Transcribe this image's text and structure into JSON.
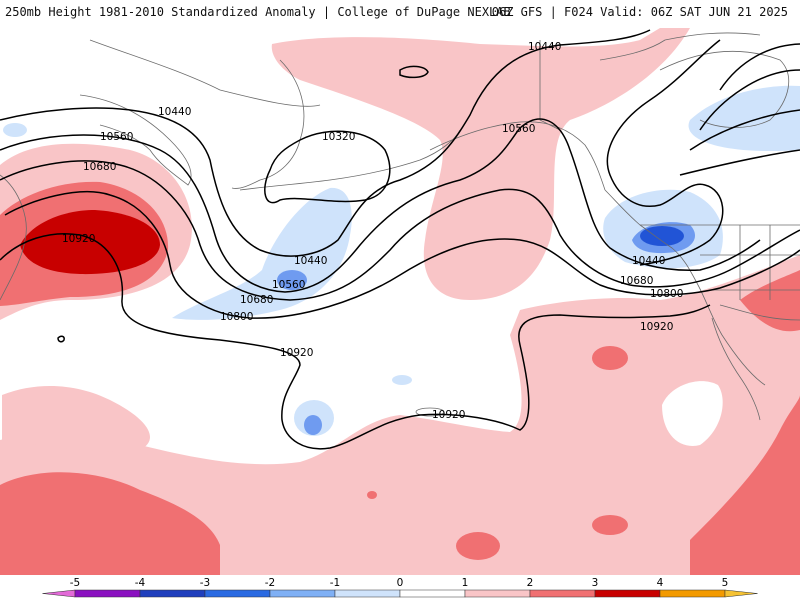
{
  "header": {
    "left_title": "250mb Height 1981-2010 Standardized Anomaly | College of DuPage NEXLAB",
    "right_title": "06Z GFS | F024 Valid: 06Z SAT JUN 21 2025"
  },
  "map": {
    "contour_labels": [
      "10440",
      "10560",
      "10680",
      "10920",
      "10320",
      "10440",
      "10560",
      "10680",
      "10800",
      "10920",
      "10440",
      "10560",
      "10440",
      "10680",
      "10800",
      "10920",
      "10920"
    ],
    "colors": {
      "pos1": "#f9c5c7",
      "pos2": "#f07072",
      "pos3": "#c80000",
      "neg1": "#cfe3fb",
      "neg2": "#6f9bf0",
      "neg3": "#2154d6",
      "land_border": "#6b6b6b",
      "contour": "#000000"
    }
  },
  "colorbar": {
    "ticks": [
      "-5",
      "-4",
      "-3",
      "-2",
      "-1",
      "0",
      "1",
      "2",
      "3",
      "4",
      "5"
    ],
    "bins": [
      {
        "from": -5.5,
        "to": -5,
        "color": "#e36ad8"
      },
      {
        "from": -5,
        "to": -4,
        "color": "#8a10c0"
      },
      {
        "from": -4,
        "to": -3,
        "color": "#1f3fbd"
      },
      {
        "from": -3,
        "to": -2,
        "color": "#2a6ae2"
      },
      {
        "from": -2,
        "to": -1,
        "color": "#7fb0f5"
      },
      {
        "from": -1,
        "to": 0,
        "color": "#cfe3fb"
      },
      {
        "from": 0,
        "to": 1,
        "color": "#ffffff"
      },
      {
        "from": 1,
        "to": 2,
        "color": "#f9c5c7"
      },
      {
        "from": 2,
        "to": 3,
        "color": "#f07072"
      },
      {
        "from": 3,
        "to": 4,
        "color": "#c80000"
      },
      {
        "from": 4,
        "to": 5,
        "color": "#f39a00"
      },
      {
        "from": 5,
        "to": 5.5,
        "color": "#f5c233"
      }
    ]
  }
}
